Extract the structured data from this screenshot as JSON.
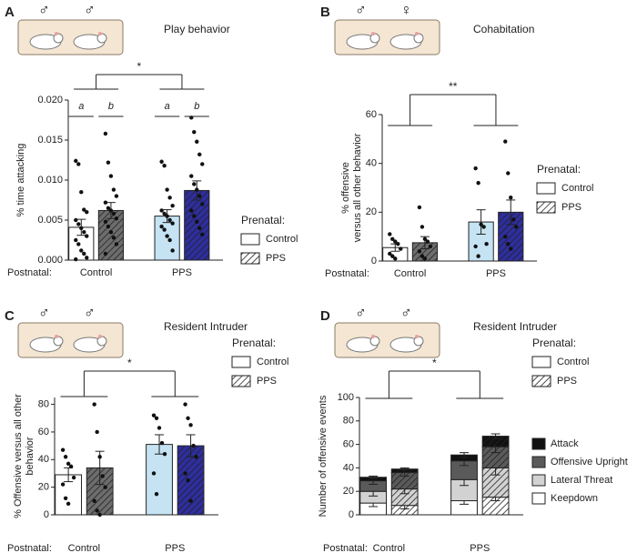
{
  "chart_data": [
    {
      "type": "bar",
      "panel": "A",
      "title": "Play behavior",
      "icons": [
        "♂",
        "♂"
      ],
      "ylabel": [
        "% time attacking"
      ],
      "xlabel": "Postnatal:",
      "legend_title": "Prenatal:",
      "categories": [
        "Control",
        "PPS"
      ],
      "ylim": [
        0,
        0.02
      ],
      "yticks": [
        {
          "value": 0,
          "label": "0.000"
        },
        {
          "value": 0.005,
          "label": "0.005"
        },
        {
          "value": 0.01,
          "label": "0.010"
        },
        {
          "value": 0.015,
          "label": "0.015"
        },
        {
          "value": 0.02,
          "label": "0.020"
        }
      ],
      "significance": "*",
      "letters": [
        [
          "a",
          "b"
        ],
        [
          "a",
          "b"
        ]
      ],
      "series": [
        {
          "name": "Control",
          "legend_color": "#ffffff",
          "colors": [
            "#ffffff",
            "#c5e3f3"
          ],
          "values": [
            0.0041,
            0.0055
          ],
          "errors": [
            0.001,
            0.0008
          ],
          "points": [
            [
              0.0124,
              0.012,
              0.0085,
              0.0063,
              0.006,
              0.005,
              0.0045,
              0.004,
              0.0035,
              0.003,
              0.0025,
              0.002,
              0.0012,
              0.0008,
              0.0003,
              0.0001
            ],
            [
              0.0123,
              0.0118,
              0.0088,
              0.0078,
              0.0068,
              0.0062,
              0.0058,
              0.0055,
              0.005,
              0.0046,
              0.0042,
              0.0038,
              0.003,
              0.0025,
              0.0012
            ]
          ]
        },
        {
          "name": "PPS",
          "pattern": "hatch",
          "legend_color": "#ffffff",
          "colors": [
            "#6d6d6d",
            "#2e2e9e"
          ],
          "values": [
            0.0062,
            0.0087
          ],
          "errors": [
            0.001,
            0.0012
          ],
          "points": [
            [
              0.0158,
              0.0122,
              0.0105,
              0.0088,
              0.008,
              0.0072,
              0.0065,
              0.0062,
              0.0058,
              0.0052,
              0.0048,
              0.0042,
              0.0035,
              0.0028,
              0.002,
              0.0008
            ],
            [
              0.0178,
              0.016,
              0.0148,
              0.0132,
              0.012,
              0.0105,
              0.0095,
              0.0088,
              0.008,
              0.007,
              0.0062,
              0.0055,
              0.0048,
              0.004,
              0.0032
            ]
          ]
        }
      ]
    },
    {
      "type": "bar",
      "panel": "B",
      "title": "Cohabitation",
      "icons": [
        "♂",
        "♀"
      ],
      "ylabel": [
        "% offensive",
        "versus all other behavior"
      ],
      "xlabel": "Postnatal:",
      "legend_title": "Prenatal:",
      "categories": [
        "Control",
        "PPS"
      ],
      "ylim": [
        0,
        60
      ],
      "yticks": [
        0,
        20,
        40,
        60
      ],
      "significance": "**",
      "series": [
        {
          "name": "Control",
          "legend_color": "#ffffff",
          "colors": [
            "#ffffff",
            "#c5e3f3"
          ],
          "values": [
            5.5,
            16
          ],
          "errors": [
            1.5,
            5
          ],
          "points": [
            [
              11,
              9,
              8,
              7,
              5,
              3,
              2,
              1
            ],
            [
              38,
              32,
              15,
              14,
              7,
              6,
              2
            ]
          ]
        },
        {
          "name": "PPS",
          "pattern": "hatch",
          "legend_color": "#ffffff",
          "colors": [
            "#6d6d6d",
            "#2e2e9e"
          ],
          "values": [
            7.5,
            20
          ],
          "errors": [
            2.5,
            5
          ],
          "points": [
            [
              22,
              14,
              9,
              8,
              6,
              4,
              2,
              1
            ],
            [
              49,
              36,
              26,
              17,
              14,
              10,
              7,
              5
            ]
          ]
        }
      ]
    },
    {
      "type": "bar",
      "panel": "C",
      "title": "Resident Intruder",
      "icons": [
        "♂",
        "♂"
      ],
      "ylabel": [
        "% Offensive versus all other",
        "behavior"
      ],
      "xlabel": "Postnatal:",
      "legend_title": "Prenatal:",
      "categories": [
        "Control",
        "PPS"
      ],
      "ylim": [
        0,
        85
      ],
      "yticks": [
        0,
        20,
        40,
        60,
        80
      ],
      "significance": "*",
      "series": [
        {
          "name": "Control",
          "legend_color": "#ffffff",
          "colors": [
            "#ffffff",
            "#c5e3f3"
          ],
          "values": [
            29,
            51
          ],
          "errors": [
            5,
            7
          ],
          "points": [
            [
              47,
              42,
              37,
              35,
              27,
              22,
              12,
              8
            ],
            [
              72,
              70,
              63,
              52,
              44,
              30,
              15
            ]
          ]
        },
        {
          "name": "PPS",
          "pattern": "hatch",
          "legend_color": "#ffffff",
          "colors": [
            "#6d6d6d",
            "#2e2e9e"
          ],
          "values": [
            34,
            50
          ],
          "errors": [
            12,
            8
          ],
          "points": [
            [
              80,
              60,
              42,
              28,
              20,
              10,
              3,
              0
            ],
            [
              80,
              70,
              65,
              50,
              42,
              30,
              25,
              10
            ]
          ]
        }
      ]
    },
    {
      "type": "stacked_bar",
      "panel": "D",
      "title": "Resident Intruder",
      "icons": [
        "♂",
        "♂"
      ],
      "ylabel": [
        "Number of offensive events"
      ],
      "xlabel": "Postnatal:",
      "legend_title": "Prenatal:",
      "categories": [
        "Control",
        "PPS"
      ],
      "ylim": [
        0,
        100
      ],
      "yticks": [
        0,
        20,
        40,
        60,
        80,
        100
      ],
      "significance": "*",
      "prenatal": [
        {
          "name": "Control",
          "legend_color": "#ffffff"
        },
        {
          "name": "PPS",
          "pattern": "hatch",
          "legend_color": "#ffffff"
        }
      ],
      "series": [
        {
          "name": "Keepdown",
          "color": "#ffffff",
          "values": [
            [
              10,
              8
            ],
            [
              12,
              15
            ]
          ],
          "errors": [
            [
              3,
              3
            ],
            [
              3,
              3
            ]
          ]
        },
        {
          "name": "Lateral Threat",
          "color": "#d2d2d2",
          "values": [
            [
              10,
              14
            ],
            [
              18,
              25
            ]
          ],
          "errors": [
            [
              4,
              4
            ],
            [
              5,
              6
            ]
          ]
        },
        {
          "name": "Offensive Upright",
          "color": "#5a5a5a",
          "values": [
            [
              9,
              14
            ],
            [
              16,
              18
            ]
          ],
          "errors": [
            [
              3,
              3
            ],
            [
              4,
              5
            ]
          ]
        },
        {
          "name": "Attack",
          "color": "#111111",
          "values": [
            [
              3,
              3
            ],
            [
              5,
              9
            ]
          ],
          "errors": [
            [
              1,
              1
            ],
            [
              2,
              2
            ]
          ]
        }
      ]
    }
  ]
}
